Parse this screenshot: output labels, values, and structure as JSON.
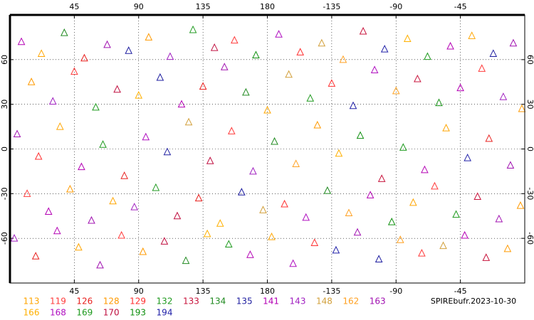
{
  "chart_data": {
    "type": "scatter",
    "title": "SPIREbufr.2023-10-30",
    "xlim": [
      0,
      360
    ],
    "ylim": [
      -90,
      90
    ],
    "xticks": [
      45,
      90,
      135,
      180,
      {
        "value": 225,
        "label": "-135"
      },
      {
        "value": 270,
        "label": "-90"
      },
      {
        "value": 315,
        "label": "-45"
      }
    ],
    "yticks": [
      60,
      30,
      0,
      -30,
      -60
    ],
    "grid": true,
    "legend": [
      {
        "name": "113",
        "color": "#ffa500"
      },
      {
        "name": "119",
        "color": "#ff3c3c"
      },
      {
        "name": "126",
        "color": "#e8201e"
      },
      {
        "name": "128",
        "color": "#ff9a00"
      },
      {
        "name": "129",
        "color": "#ff3030"
      },
      {
        "name": "132",
        "color": "#1f9a1f"
      },
      {
        "name": "133",
        "color": "#c8143c"
      },
      {
        "name": "134",
        "color": "#208a20"
      },
      {
        "name": "135",
        "color": "#1e1ea0"
      },
      {
        "name": "141",
        "color": "#b400b4"
      },
      {
        "name": "143",
        "color": "#a020c0"
      },
      {
        "name": "148",
        "color": "#d2a03c"
      },
      {
        "name": "162",
        "color": "#ffa020"
      },
      {
        "name": "163",
        "color": "#a010b0"
      },
      {
        "name": "166",
        "color": "#ffb000"
      },
      {
        "name": "168",
        "color": "#b010c0"
      },
      {
        "name": "169",
        "color": "#1e9a1e"
      },
      {
        "name": "170",
        "color": "#c01040"
      },
      {
        "name": "193",
        "color": "#109010"
      },
      {
        "name": "194",
        "color": "#2020a8"
      }
    ],
    "points": {
      "lon": [
        8,
        22,
        38,
        52,
        68,
        83,
        97,
        112,
        128,
        143,
        157,
        172,
        188,
        203,
        218,
        233,
        247,
        262,
        278,
        292,
        308,
        323,
        338,
        352,
        15,
        30,
        45,
        60,
        75,
        90,
        105,
        120,
        135,
        150,
        165,
        180,
        195,
        210,
        225,
        240,
        255,
        270,
        285,
        300,
        315,
        330,
        345,
        358,
        5,
        20,
        35,
        50,
        65,
        80,
        95,
        110,
        125,
        140,
        155,
        170,
        185,
        200,
        215,
        230,
        245,
        260,
        275,
        290,
        305,
        320,
        335,
        350,
        12,
        27,
        42,
        57,
        72,
        87,
        102,
        117,
        132,
        147,
        162,
        177,
        192,
        207,
        222,
        237,
        252,
        267,
        282,
        297,
        312,
        327,
        342,
        357,
        3,
        18,
        33,
        48,
        63,
        78,
        93,
        108,
        123,
        138,
        153,
        168,
        183,
        198,
        213,
        228,
        243,
        258,
        273,
        288,
        303,
        318,
        333,
        348
      ],
      "lat": [
        72,
        64,
        78,
        61,
        70,
        66,
        75,
        62,
        80,
        68,
        73,
        63,
        77,
        65,
        71,
        60,
        79,
        67,
        74,
        62,
        69,
        76,
        64,
        71,
        45,
        32,
        52,
        28,
        40,
        36,
        48,
        30,
        42,
        55,
        38,
        26,
        50,
        34,
        44,
        29,
        53,
        39,
        47,
        31,
        41,
        54,
        35,
        27,
        10,
        -5,
        15,
        -12,
        3,
        -18,
        8,
        -2,
        18,
        -8,
        12,
        -15,
        5,
        -10,
        16,
        -3,
        9,
        -20,
        1,
        -14,
        14,
        -6,
        7,
        -11,
        -30,
        -42,
        -27,
        -48,
        -35,
        -39,
        -26,
        -45,
        -33,
        -50,
        -29,
        -41,
        -37,
        -46,
        -28,
        -43,
        -31,
        -49,
        -36,
        -25,
        -44,
        -32,
        -47,
        -38,
        -60,
        -72,
        -55,
        -66,
        -78,
        -58,
        -69,
        -62,
        -75,
        -57,
        -64,
        -71,
        -59,
        -77,
        -63,
        -68,
        -56,
        -74,
        -61,
        -70,
        -65,
        -58,
        -73,
        -67
      ],
      "sat": [
        141,
        113,
        134,
        126,
        163,
        135,
        128,
        143,
        132,
        170,
        119,
        193,
        168,
        129,
        148,
        162,
        133,
        194,
        166,
        169,
        141,
        113,
        135,
        163,
        128,
        143,
        119,
        132,
        170,
        166,
        135,
        141,
        126,
        163,
        134,
        113,
        148,
        169,
        129,
        194,
        168,
        162,
        133,
        193,
        141,
        119,
        143,
        128,
        163,
        129,
        113,
        141,
        132,
        126,
        168,
        135,
        148,
        170,
        119,
        143,
        134,
        162,
        128,
        166,
        193,
        133,
        169,
        141,
        113,
        194,
        126,
        163,
        119,
        141,
        128,
        163,
        113,
        143,
        132,
        170,
        126,
        166,
        135,
        148,
        129,
        168,
        134,
        162,
        141,
        193,
        113,
        119,
        169,
        133,
        163,
        128,
        143,
        126,
        141,
        113,
        163,
        119,
        128,
        170,
        134,
        166,
        132,
        141,
        113,
        168,
        129,
        194,
        163,
        135,
        162,
        119,
        148,
        141,
        133,
        128
      ]
    }
  }
}
